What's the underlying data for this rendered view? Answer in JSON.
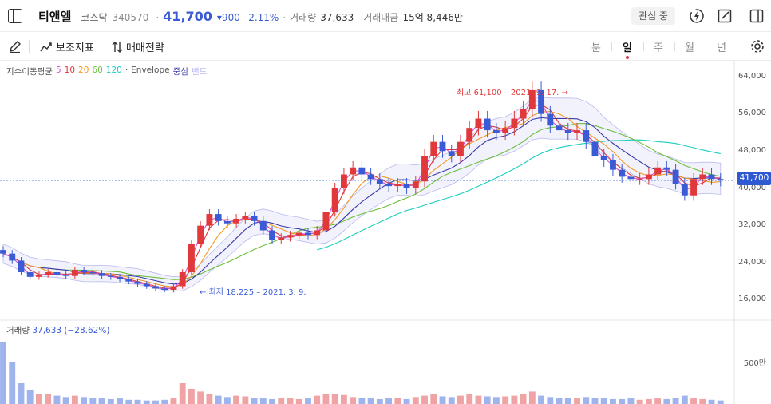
{
  "header": {
    "name": "티앤엘",
    "market": "코스닥",
    "code": "340570",
    "price": "41,700",
    "change": "▾900",
    "change_pct": "-2.11%",
    "volume_label": "거래량",
    "volume_value": "37,633",
    "amount_label": "거래대금",
    "amount_value": "15억 8,446만",
    "favorite_label": "관심 중"
  },
  "toolbar": {
    "indicator_label": "보조지표",
    "strategy_label": "매매전략",
    "periods": [
      "분",
      "일",
      "주",
      "월",
      "년"
    ],
    "active_period": "일"
  },
  "legend": {
    "prefix": "지수이동평균",
    "ma": [
      {
        "label": "5",
        "color": "#d64fd6"
      },
      {
        "label": "10",
        "color": "#e0383b"
      },
      {
        "label": "20",
        "color": "#f59a23"
      },
      {
        "label": "60",
        "color": "#6bbf3a"
      },
      {
        "label": "120",
        "color": "#1ccfc0"
      }
    ],
    "envelope": "Envelope",
    "env_mid": "중심",
    "env_band": "밴드",
    "colors": {
      "mid": "#3b3ba8",
      "band": "#b9b9ef"
    }
  },
  "volume": {
    "label": "거래량",
    "value": "37,633 (−28.62%)",
    "axis_label": "500만"
  },
  "annotations": {
    "high": "최고 61,100 – 2021. 9. 17.  →",
    "low": "← 최저 18,225 – 2021. 3. 9."
  },
  "price_tag": "41,700",
  "chart_data": {
    "type": "candlestick",
    "y_ticks": [
      "64,000",
      "56,000",
      "48,000",
      "40,000",
      "32,000",
      "24,000",
      "16,000"
    ],
    "ylim": [
      10000,
      66000
    ],
    "high": 61100,
    "low": 18225,
    "last": 41700,
    "colors": {
      "up": "#e0383b",
      "down": "#3b5bd6"
    },
    "close_path": [
      26000,
      24500,
      22000,
      21000,
      21500,
      22000,
      21500,
      21200,
      22500,
      22000,
      21800,
      21200,
      21000,
      20500,
      20000,
      19500,
      19000,
      18500,
      18225,
      19000,
      22000,
      28000,
      32000,
      34500,
      33000,
      32500,
      33500,
      34000,
      33000,
      31000,
      29000,
      29500,
      30000,
      30500,
      30000,
      31000,
      35000,
      40000,
      43000,
      44500,
      43000,
      42000,
      41000,
      40500,
      41000,
      40000,
      41500,
      47000,
      50000,
      48000,
      47000,
      50000,
      53000,
      55000,
      52500,
      52000,
      53000,
      55000,
      57000,
      61100,
      56000,
      53500,
      52500,
      52000,
      52500,
      50000,
      47000,
      46000,
      44000,
      42500,
      42000,
      42000,
      43000,
      44500,
      44000,
      41000,
      38500,
      42000,
      43000,
      42000,
      41700
    ],
    "volume_series": [
      90,
      60,
      30,
      20,
      15,
      14,
      12,
      10,
      12,
      10,
      9,
      8,
      7,
      8,
      6,
      6,
      5,
      5,
      6,
      8,
      30,
      22,
      18,
      15,
      12,
      10,
      12,
      11,
      9,
      8,
      7,
      8,
      9,
      7,
      8,
      12,
      15,
      14,
      13,
      10,
      9,
      8,
      7,
      8,
      9,
      7,
      10,
      12,
      14,
      11,
      10,
      12,
      14,
      12,
      11,
      10,
      11,
      12,
      14,
      18,
      12,
      10,
      9,
      9,
      8,
      10,
      9,
      8,
      7,
      7,
      8,
      6,
      7,
      8,
      7,
      9,
      12,
      8,
      7,
      6,
      5
    ]
  }
}
